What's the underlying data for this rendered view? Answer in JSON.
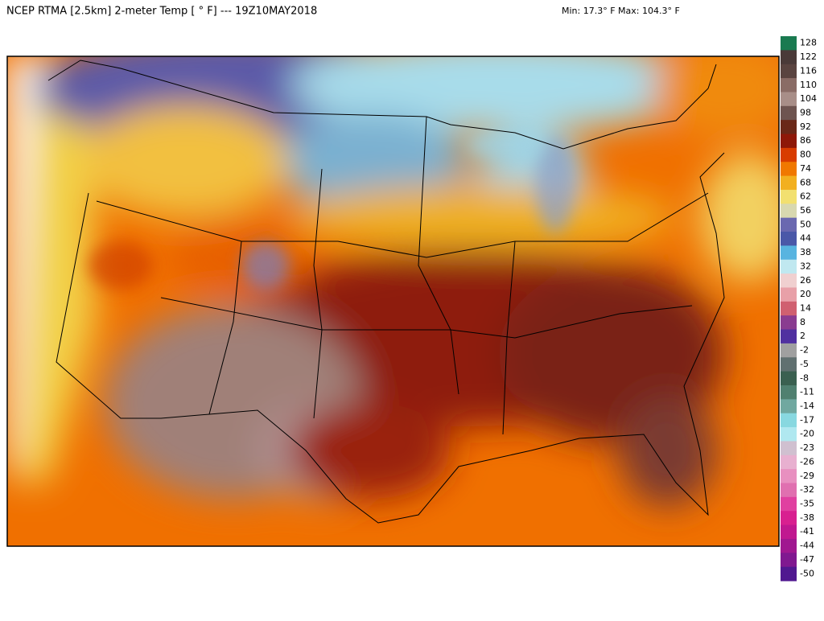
{
  "header": {
    "title": "NCEP RTMA [2.5km] 2-meter Temp [ ° F]  --- 19Z10MAY2018",
    "range": "Min: 17.3° F Max: 104.3° F"
  },
  "colorbar": {
    "labels": [
      128,
      122,
      116,
      110,
      104,
      98,
      92,
      86,
      80,
      74,
      68,
      62,
      56,
      50,
      44,
      38,
      32,
      26,
      20,
      14,
      8,
      2,
      -2,
      -5,
      -8,
      -11,
      -14,
      -17,
      -20,
      -23,
      -26,
      -29,
      -32,
      -35,
      -38,
      -41,
      -44,
      -47,
      -50
    ]
  }
}
